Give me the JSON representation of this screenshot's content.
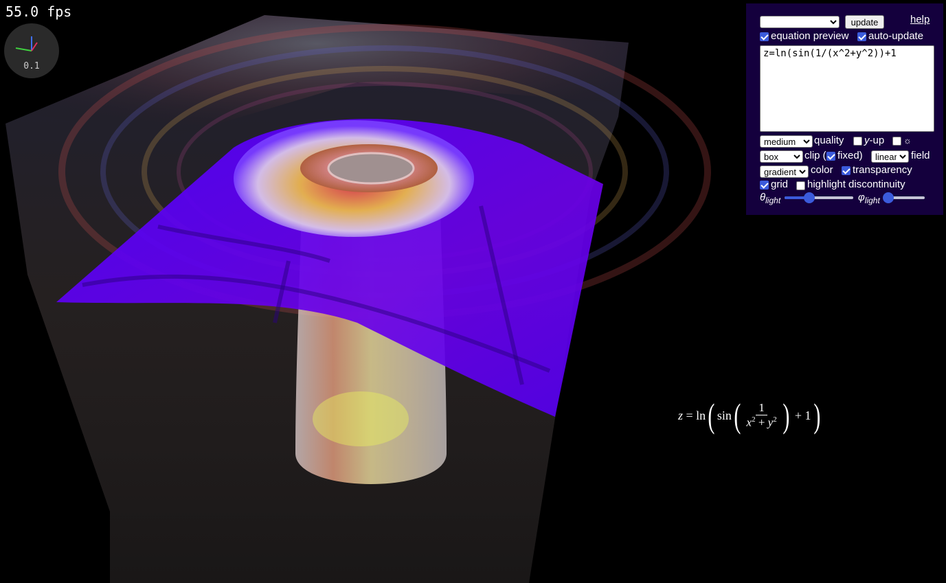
{
  "fps": "55.0 fps",
  "axes_scale": "0.1",
  "panel": {
    "preset_select": "",
    "update_label": "update",
    "help_label": "help",
    "equation_preview_label": "equation preview",
    "equation_preview_checked": true,
    "auto_update_label": "auto-update",
    "auto_update_checked": true,
    "equation_text": "z=ln(sin(1/(x^2+y^2))+1",
    "quality_select": "medium",
    "quality_label": "quality",
    "y_up_label": "y",
    "y_up_suffix": "-up",
    "y_up_checked": false,
    "sun_label": "☼",
    "sun_checked": false,
    "clip_select": "box",
    "clip_label": "clip (",
    "fixed_label": "fixed)",
    "fixed_checked": true,
    "field_select": "linear",
    "field_label": "field",
    "color_select": "gradient",
    "color_label": "color",
    "transparency_label": "transparency",
    "transparency_checked": true,
    "grid_label": "grid",
    "grid_checked": true,
    "highlight_label": "highlight discontinuity",
    "highlight_checked": false,
    "theta_symbol": "θ",
    "theta_sub": "light",
    "theta_value": 0.36,
    "phi_symbol": "φ",
    "phi_sub": "light",
    "phi_value": 0.12
  },
  "preview": {
    "lhs": "z",
    "eq": " = ",
    "ln": "ln",
    "sin": "sin",
    "num": "1",
    "den_x": "x",
    "den_plus": " + ",
    "den_y": "y",
    "exp": "2",
    "tail": " + 1"
  },
  "colors": {
    "panel_bg": "#14003d",
    "surface": "#5a00ff",
    "accent": "#3b5bdb"
  }
}
